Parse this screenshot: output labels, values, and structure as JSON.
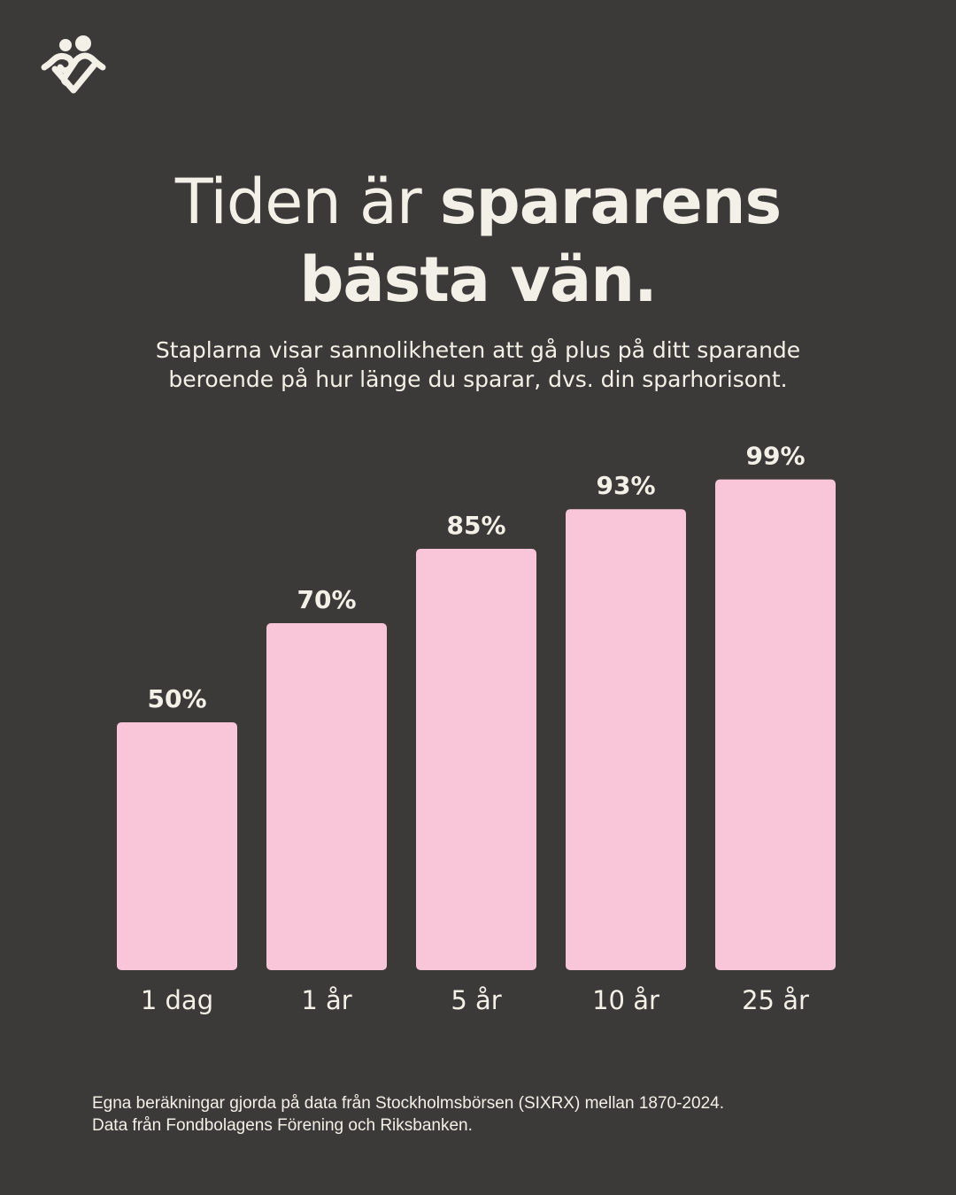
{
  "logo_name": "heart-people-logo",
  "title": {
    "light": "Tiden är ",
    "bold1": "spararens",
    "bold2": "bästa vän."
  },
  "subtitle": "Staplarna visar sannolikheten att gå plus på ditt sparande beroende på hur länge du sparar, dvs. din sparhorisont.",
  "chart_data": {
    "type": "bar",
    "categories": [
      "1 dag",
      "1 år",
      "5 år",
      "10 år",
      "25 år"
    ],
    "values": [
      50,
      70,
      85,
      93,
      99
    ],
    "data_labels": [
      "50%",
      "70%",
      "85%",
      "93%",
      "99%"
    ],
    "ylim": [
      0,
      100
    ],
    "grid": false,
    "bar_color": "#f8c6d8",
    "label_color": "#f3f0e8"
  },
  "footer": {
    "line1": "Egna beräkningar gjorda på data från Stockholmsbörsen (SIXRX) mellan 1870-2024.",
    "line2": "Data från Fondbolagens Förening och Riksbanken."
  }
}
